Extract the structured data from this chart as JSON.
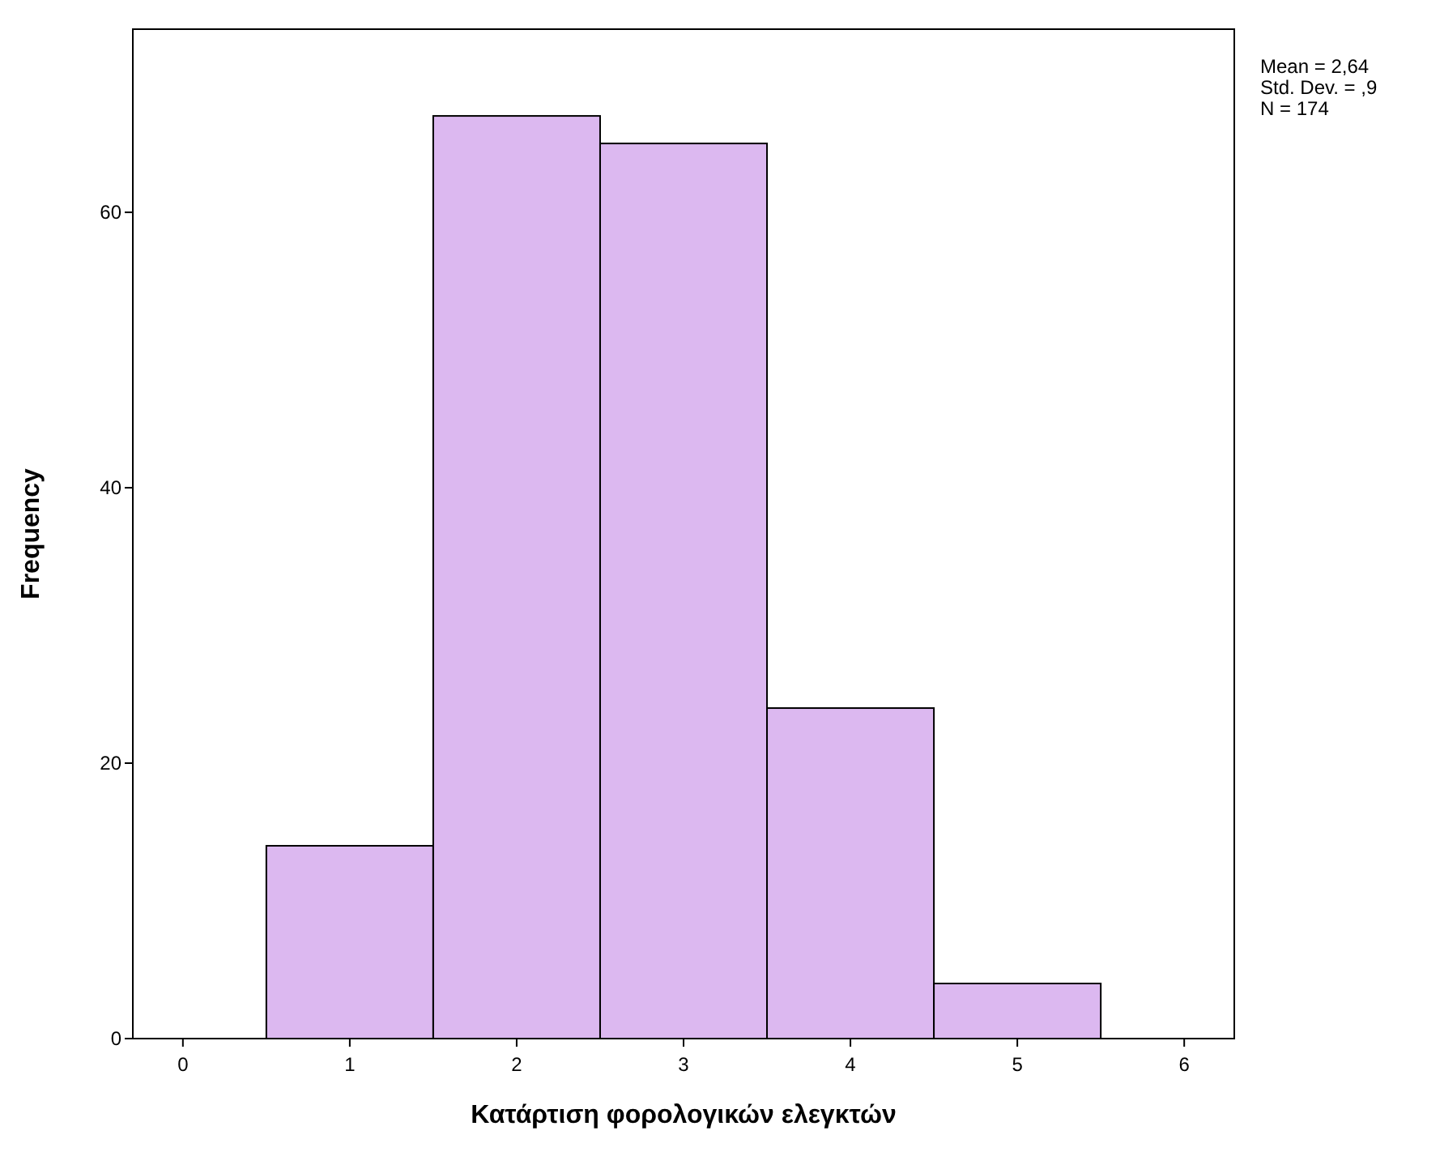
{
  "chart_data": {
    "type": "histogram",
    "xlabel": "Κατάρτιση φορολογικών ελεγκτών",
    "ylabel": "Frequency",
    "bins": [
      0.5,
      1.5,
      2.5,
      3.5,
      4.5,
      5.5
    ],
    "values": [
      14,
      67,
      65,
      24,
      4
    ],
    "color": "#dcb8f0",
    "xlim": [
      -0.3,
      6.3
    ],
    "xticks": [
      0,
      1,
      2,
      3,
      4,
      5,
      6
    ],
    "ylim": [
      0,
      73.3
    ],
    "yticks": [
      0,
      20,
      40,
      60
    ],
    "grid": false,
    "annotations": [
      "Mean = 2,64",
      "Std. Dev. = ,9",
      "N = 174"
    ]
  }
}
